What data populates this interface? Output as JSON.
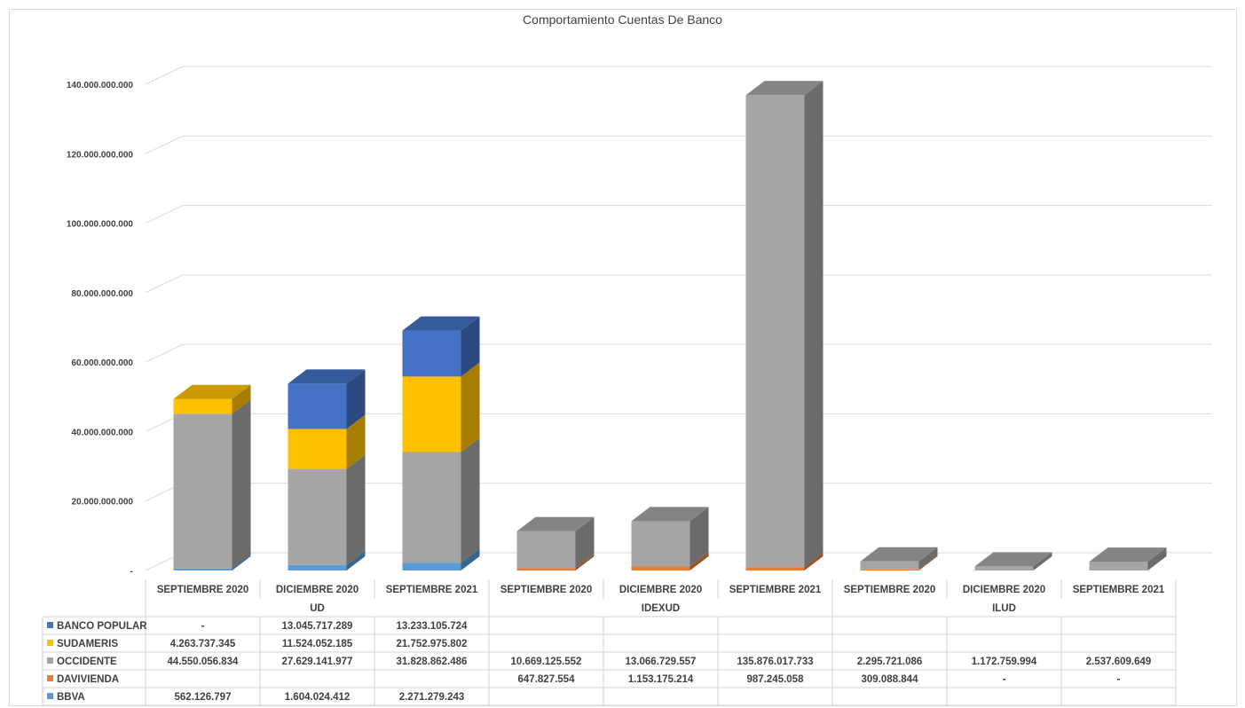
{
  "chart_data": {
    "type": "bar",
    "stacked": true,
    "three_d": true,
    "title": "Comportamiento Cuentas De Banco",
    "groups": [
      {
        "name": "UD",
        "categories": [
          "SEPTIEMBRE 2020",
          "DICIEMBRE 2020",
          "SEPTIEMBRE 2021"
        ]
      },
      {
        "name": "IDEXUD",
        "categories": [
          "SEPTIEMBRE 2020",
          "DICIEMBRE 2020",
          "SEPTIEMBRE 2021"
        ]
      },
      {
        "name": "ILUD",
        "categories": [
          "SEPTIEMBRE 2020",
          "DICIEMBRE 2020",
          "SEPTIEMBRE 2021"
        ]
      }
    ],
    "series": [
      {
        "name": "BANCO POPULAR",
        "color": "#4472c4",
        "values": [
          0,
          13045717289,
          13233105724,
          null,
          null,
          null,
          null,
          null,
          null
        ],
        "labels": [
          "-",
          "13.045.717.289",
          "13.233.105.724",
          "",
          "",
          "",
          "",
          "",
          ""
        ]
      },
      {
        "name": "SUDAMERIS",
        "color": "#ffc000",
        "values": [
          4263737345,
          11524052185,
          21752975802,
          null,
          null,
          null,
          null,
          null,
          null
        ],
        "labels": [
          "4.263.737.345",
          "11.524.052.185",
          "21.752.975.802",
          "",
          "",
          "",
          "",
          "",
          ""
        ]
      },
      {
        "name": "OCCIDENTE",
        "color": "#a5a5a5",
        "values": [
          44550056834,
          27629141977,
          31828862486,
          10669125552,
          13066729557,
          135876017733,
          2295721086,
          1172759994,
          2537609649
        ],
        "labels": [
          "44.550.056.834",
          "27.629.141.977",
          "31.828.862.486",
          "10.669.125.552",
          "13.066.729.557",
          "135.876.017.733",
          "2.295.721.086",
          "1.172.759.994",
          "2.537.609.649"
        ]
      },
      {
        "name": "DAVIVIENDA",
        "color": "#ed7d31",
        "values": [
          null,
          null,
          null,
          647827554,
          1153175214,
          987245058,
          309088844,
          0,
          0
        ],
        "labels": [
          "",
          "",
          "",
          "647.827.554",
          "1.153.175.214",
          "987.245.058",
          "309.088.844",
          "-",
          "-"
        ]
      },
      {
        "name": "BBVA",
        "color": "#5b9bd5",
        "values": [
          562126797,
          1604024412,
          2271279243,
          null,
          null,
          null,
          null,
          null,
          null
        ],
        "labels": [
          "562.126.797",
          "1.604.024.412",
          "2.271.279.243",
          "",
          "",
          "",
          "",
          "",
          ""
        ]
      }
    ],
    "stack_order": [
      "BBVA",
      "DAVIVIENDA",
      "OCCIDENTE",
      "SUDAMERIS",
      "BANCO POPULAR"
    ],
    "yticks": [
      {
        "value": 0,
        "label": "-"
      },
      {
        "value": 20000000000,
        "label": "20.000.000.000"
      },
      {
        "value": 40000000000,
        "label": "40.000.000.000"
      },
      {
        "value": 60000000000,
        "label": "60.000.000.000"
      },
      {
        "value": 80000000000,
        "label": "80.000.000.000"
      },
      {
        "value": 100000000000,
        "label": "100.000.000.000"
      },
      {
        "value": 120000000000,
        "label": "120.000.000.000"
      },
      {
        "value": 140000000000,
        "label": "140.000.000.000"
      }
    ],
    "ylim": [
      0,
      140000000000
    ],
    "grid": true,
    "legend": "data-table"
  }
}
